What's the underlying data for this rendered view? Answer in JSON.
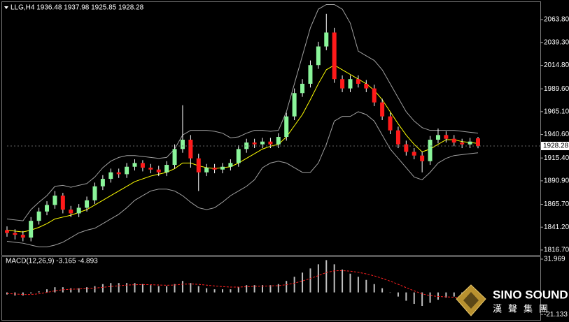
{
  "chart_data": [
    {
      "type": "candlestick",
      "title": "LLG,H4 1936.48 1937.98 1925.85 1928.28",
      "open": [
        1838,
        1835,
        1833,
        1830,
        1848,
        1858,
        1865,
        1875,
        1860,
        1856,
        1862,
        1870,
        1885,
        1893,
        1900,
        1898,
        1906,
        1910,
        1905,
        1903,
        1900,
        1908,
        1925,
        1935,
        1915,
        1900,
        1905,
        1903,
        1906,
        1910,
        1925,
        1932,
        1930,
        1933,
        1930,
        1938,
        1960,
        1985,
        1995,
        2015,
        2035,
        2050,
        2000,
        1990,
        2000,
        1995,
        1990,
        1975,
        1960,
        1945,
        1930,
        1922,
        1918,
        1912,
        1935,
        1940,
        1936,
        1932,
        1930,
        1936.48
      ],
      "high": [
        1842,
        1839,
        1837,
        1852,
        1862,
        1869,
        1880,
        1878,
        1864,
        1866,
        1874,
        1889,
        1897,
        1904,
        1904,
        1910,
        1914,
        1913,
        1909,
        1907,
        1912,
        1930,
        1972,
        1940,
        1920,
        1909,
        1909,
        1910,
        1914,
        1929,
        1936,
        1936,
        1937,
        1937,
        1942,
        1964,
        1990,
        2000,
        2020,
        2040,
        2070,
        2055,
        2004,
        2004,
        2004,
        1999,
        1994,
        1979,
        1964,
        1949,
        1934,
        1926,
        1922,
        1939,
        1947,
        1944,
        1940,
        1936,
        1937,
        1937.98
      ],
      "low": [
        1831,
        1828,
        1826,
        1826,
        1844,
        1854,
        1861,
        1856,
        1852,
        1852,
        1858,
        1866,
        1881,
        1889,
        1894,
        1894,
        1902,
        1901,
        1899,
        1896,
        1896,
        1904,
        1921,
        1905,
        1880,
        1896,
        1899,
        1899,
        1902,
        1906,
        1921,
        1926,
        1926,
        1926,
        1926,
        1934,
        1956,
        1981,
        1991,
        2011,
        2031,
        1996,
        1986,
        1986,
        1991,
        1986,
        1971,
        1956,
        1941,
        1926,
        1918,
        1914,
        1900,
        1908,
        1931,
        1932,
        1928,
        1926,
        1926,
        1925.85
      ],
      "close": [
        1835,
        1833,
        1830,
        1848,
        1858,
        1865,
        1875,
        1860,
        1856,
        1862,
        1870,
        1885,
        1893,
        1900,
        1898,
        1906,
        1910,
        1905,
        1903,
        1900,
        1908,
        1925,
        1935,
        1915,
        1900,
        1905,
        1903,
        1906,
        1910,
        1925,
        1932,
        1930,
        1933,
        1930,
        1938,
        1960,
        1985,
        1995,
        2015,
        2035,
        2050,
        2000,
        1990,
        2000,
        1995,
        1990,
        1975,
        1960,
        1945,
        1930,
        1922,
        1918,
        1912,
        1935,
        1940,
        1936,
        1932,
        1930,
        1933,
        1928.28
      ],
      "up_color": "#8af59a",
      "down_color": "#ff1a1a",
      "wick_color": "#ffffff",
      "lines": [
        {
          "color": "#ffff00",
          "values": [
            1838,
            1837,
            1836,
            1838,
            1841,
            1845,
            1850,
            1852,
            1854,
            1857,
            1860,
            1865,
            1870,
            1875,
            1880,
            1885,
            1890,
            1893,
            1896,
            1898,
            1900,
            1904,
            1910,
            1910,
            1907,
            1905,
            1904,
            1905,
            1906,
            1910,
            1915,
            1920,
            1925,
            1928,
            1930,
            1938,
            1950,
            1962,
            1978,
            1995,
            2010,
            2015,
            2010,
            2005,
            2000,
            1995,
            1988,
            1978,
            1965,
            1952,
            1940,
            1930,
            1922,
            1925,
            1930,
            1935,
            1935,
            1933,
            1932,
            1931
          ]
        },
        {
          "color": "#a0a0a0",
          "values": [
            1850,
            1849,
            1848,
            1860,
            1868,
            1875,
            1885,
            1886,
            1884,
            1886,
            1888,
            1895,
            1905,
            1912,
            1916,
            1918,
            1918,
            1917,
            1916,
            1915,
            1916,
            1925,
            1940,
            1945,
            1945,
            1945,
            1944,
            1942,
            1937,
            1938,
            1942,
            1945,
            1945,
            1944,
            1945,
            1965,
            1995,
            2025,
            2055,
            2075,
            2080,
            2080,
            2075,
            2060,
            2030,
            2025,
            2020,
            2010,
            1995,
            1980,
            1965,
            1955,
            1948,
            1945,
            1945,
            1945,
            1945,
            1944,
            1943,
            1942
          ]
        },
        {
          "color": "#a0a0a0",
          "values": [
            1826,
            1825,
            1824,
            1822,
            1820,
            1820,
            1822,
            1825,
            1830,
            1835,
            1838,
            1840,
            1845,
            1850,
            1855,
            1862,
            1870,
            1875,
            1880,
            1882,
            1882,
            1880,
            1875,
            1868,
            1862,
            1860,
            1862,
            1868,
            1875,
            1880,
            1885,
            1892,
            1905,
            1910,
            1912,
            1910,
            1905,
            1900,
            1900,
            1910,
            1930,
            1955,
            1960,
            1960,
            1965,
            1962,
            1955,
            1940,
            1925,
            1915,
            1905,
            1895,
            1892,
            1900,
            1910,
            1915,
            1918,
            1919,
            1920,
            1921
          ]
        }
      ],
      "ylim": [
        1811.4,
        2082.6
      ],
      "yticks": [
        {
          "value": 2063.8,
          "label": "2063.80"
        },
        {
          "value": 2039.3,
          "label": "2039.30"
        },
        {
          "value": 2014.8,
          "label": "2014.80"
        },
        {
          "value": 1989.6,
          "label": "1989.60"
        },
        {
          "value": 1965.1,
          "label": "1965.10"
        },
        {
          "value": 1940.6,
          "label": "1940.60"
        },
        {
          "value": 1915.4,
          "label": "1915.40"
        },
        {
          "value": 1890.9,
          "label": "1890.90"
        },
        {
          "value": 1865.7,
          "label": "1865.70"
        },
        {
          "value": 1841.2,
          "label": "1841.20"
        },
        {
          "value": 1816.7,
          "label": "1816.70"
        }
      ],
      "current_price": 1928.28
    },
    {
      "type": "macd",
      "title": "MACD(12,26,9) -3.165 -4.893",
      "histogram": [
        -2,
        -3,
        -3,
        -1,
        1,
        3,
        5,
        5,
        4,
        4,
        5,
        6,
        8,
        9,
        9,
        9,
        9,
        8,
        7,
        6,
        6,
        8,
        11,
        9,
        6,
        4,
        3,
        3,
        3,
        5,
        7,
        7,
        7,
        7,
        8,
        11,
        15,
        19,
        23,
        27,
        31,
        27,
        22,
        18,
        15,
        12,
        8,
        4,
        0,
        -4,
        -8,
        -11,
        -13,
        -10,
        -7,
        -5,
        -4,
        -3,
        -3,
        -3.165
      ],
      "signal": [
        -1,
        -1.5,
        -2,
        -2,
        -1.3,
        0,
        1.5,
        2.6,
        3,
        3.3,
        3.6,
        4.1,
        4.9,
        5.7,
        6.4,
        7,
        7.4,
        7.5,
        7.4,
        7.1,
        6.9,
        7.1,
        7.9,
        8.1,
        7.7,
        7,
        6.2,
        5.6,
        5.1,
        5.1,
        5.5,
        5.8,
        6,
        6.2,
        6.5,
        7.4,
        8.9,
        11,
        13.4,
        16.1,
        19.1,
        20.7,
        21,
        20.4,
        19.3,
        17.8,
        15.9,
        13.5,
        10.8,
        7.8,
        4.6,
        1.5,
        -1.4,
        -3.1,
        -3.9,
        -4.3,
        -4.6,
        -4.7,
        -4.8,
        -4.893
      ],
      "histogram_color": "#c0c0c0",
      "signal_color": "#ff2020",
      "ylim": [
        -26.4,
        33.96
      ],
      "yticks": [
        31.969,
        -21.133
      ]
    }
  ],
  "logo": {
    "name": "SINO SOUND",
    "subtitle": "漢聲集團"
  }
}
